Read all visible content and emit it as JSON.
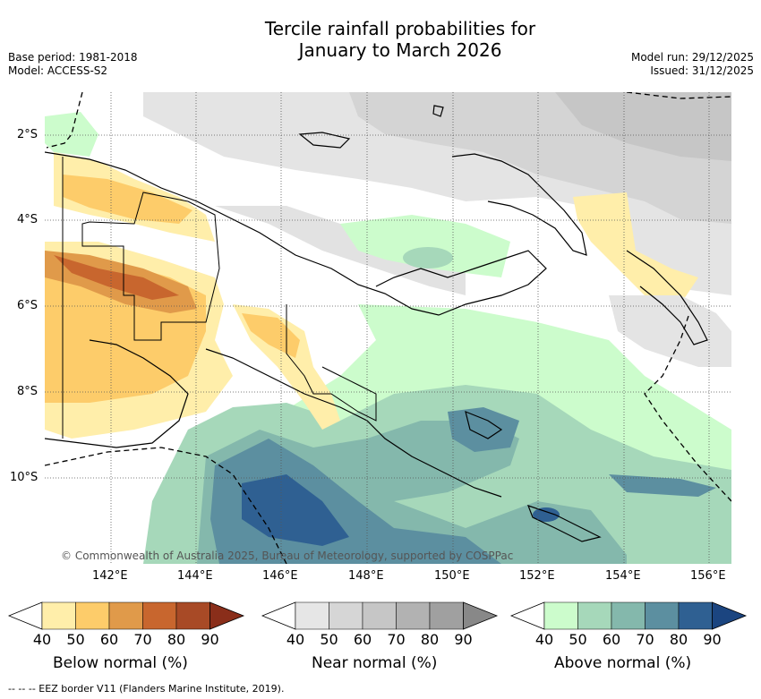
{
  "header": {
    "title_line1": "Tercile rainfall probabilities for",
    "title_line2": "January to March 2026",
    "base_period": "Base period: 1981-2018",
    "model": "Model: ACCESS-S2",
    "model_run": "Model run: 29/12/2025",
    "issued": "Issued: 31/12/2025"
  },
  "map": {
    "longitude_labels": [
      "142°E",
      "144°E",
      "146°E",
      "148°E",
      "150°E",
      "152°E",
      "154°E",
      "156°E"
    ],
    "latitude_labels": [
      "2°S",
      "4°S",
      "6°S",
      "8°S",
      "10°S"
    ],
    "copyright": "© Commonwealth of Australia 2025, Bureau of Meteorology, supported by COSPPac"
  },
  "legends": [
    {
      "title": "Below normal (%)",
      "ticks": [
        "40",
        "50",
        "60",
        "70",
        "80",
        "90"
      ],
      "colors": [
        "#ffeeaa",
        "#fdcc6a",
        "#e09a4a",
        "#c8662e",
        "#a84a26",
        "#8a2e1a"
      ]
    },
    {
      "title": "Near normal (%)",
      "ticks": [
        "40",
        "50",
        "60",
        "70",
        "80",
        "90"
      ],
      "colors": [
        "#e6e6e6",
        "#d6d6d6",
        "#c6c6c6",
        "#b2b2b2",
        "#a0a0a0",
        "#888888"
      ]
    },
    {
      "title": "Above normal (%)",
      "ticks": [
        "40",
        "50",
        "60",
        "70",
        "80",
        "90"
      ],
      "colors": [
        "#ccfccc",
        "#a6d8ba",
        "#84b8ac",
        "#5c8fa0",
        "#2f6092",
        "#1b4580"
      ]
    }
  ],
  "footnote": "--  --  -- EEZ border V11 (Flanders Marine Institute, 2019)."
}
